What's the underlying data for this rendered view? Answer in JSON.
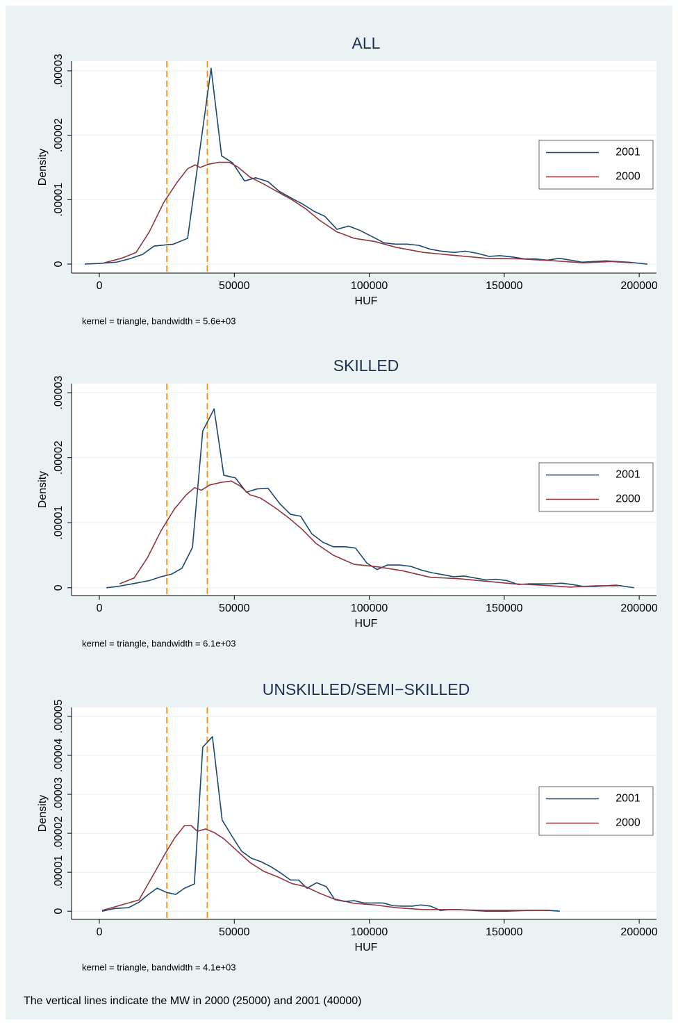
{
  "caption": "The vertical lines indicate the MW in 2000 (25000) and 2001 (40000)",
  "chart_data": [
    {
      "type": "line",
      "title": "ALL",
      "xlabel": "HUF",
      "ylabel": "Density",
      "note": "kernel = triangle, bandwidth =  5.6e+03",
      "xlim": [
        -10300,
        206400
      ],
      "ylim": [
        -1.4e-06,
        3.15e-05
      ],
      "xticks": [
        0,
        50000,
        100000,
        150000,
        200000
      ],
      "yticks": [
        0,
        {
          "value": 1e-05,
          "label": ".00001"
        },
        {
          "value": 2e-05,
          "label": ".00002"
        },
        {
          "value": 3e-05,
          "label": ".00003"
        }
      ],
      "grid": true,
      "legend": "right",
      "vlines": {
        "values": [
          25000,
          40000
        ],
        "color": "#f4901e"
      },
      "series": [
        {
          "name": "2001",
          "color": "#1a476f",
          "x": [
            -5400,
            0,
            6400,
            11000,
            16000,
            20300,
            27500,
            32700,
            41400,
            45300,
            49400,
            53800,
            57900,
            62500,
            66600,
            71300,
            75400,
            79500,
            83600,
            88000,
            92400,
            96700,
            100900,
            105500,
            109600,
            114000,
            118400,
            122700,
            126800,
            131500,
            135600,
            139700,
            144300,
            148500,
            153100,
            157500,
            161600,
            166000,
            170300,
            174700,
            178800,
            183200,
            187600,
            191700,
            196100,
            203000
          ],
          "values": [
            0,
            1e-07,
            3e-07,
            8e-07,
            1.5e-06,
            2.8e-06,
            3.1e-06,
            4e-06,
            3.04e-05,
            1.68e-05,
            1.57e-05,
            1.29e-05,
            1.34e-05,
            1.28e-05,
            1.13e-05,
            1.02e-05,
            9.3e-06,
            8.2e-06,
            7.4e-06,
            5.4e-06,
            5.9e-06,
            5.2e-06,
            4.3e-06,
            3.3e-06,
            3.1e-06,
            3.1e-06,
            2.9e-06,
            2.3e-06,
            2e-06,
            1.8e-06,
            2e-06,
            1.7e-06,
            1.2e-06,
            1.3e-06,
            1.1e-06,
            8e-07,
            8e-07,
            6e-07,
            9e-07,
            6e-07,
            3e-07,
            4e-07,
            5e-07,
            4e-07,
            3e-07,
            0
          ]
        },
        {
          "name": "2000",
          "color": "#90353b",
          "x": [
            1800,
            8200,
            13600,
            18500,
            23900,
            28800,
            32700,
            35500,
            37300,
            40400,
            44300,
            48100,
            51200,
            55800,
            61000,
            66100,
            71300,
            76400,
            81600,
            88000,
            94400,
            102100,
            109900,
            120200,
            130400,
            143300,
            156200,
            169000,
            179300,
            189600,
            197300
          ],
          "values": [
            2e-07,
            9e-07,
            1.8e-06,
            5e-06,
            9.6e-06,
            1.27e-05,
            1.48e-05,
            1.54e-05,
            1.5e-05,
            1.55e-05,
            1.58e-05,
            1.58e-05,
            1.51e-05,
            1.35e-05,
            1.24e-05,
            1.12e-05,
            1e-05,
            8.6e-06,
            6.8e-06,
            5e-06,
            4e-06,
            3.5e-06,
            2.6e-06,
            1.8e-06,
            1.4e-06,
            9e-07,
            8e-07,
            5e-07,
            2e-07,
            4e-07,
            2e-07
          ]
        }
      ]
    },
    {
      "type": "line",
      "title": "SKILLED",
      "xlabel": "HUF",
      "ylabel": "Density",
      "note": "kernel = triangle, bandwidth =  6.1e+03",
      "xlim": [
        -10300,
        206400
      ],
      "ylim": [
        -1.2e-06,
        3.14e-05
      ],
      "xticks": [
        0,
        50000,
        100000,
        150000,
        200000
      ],
      "yticks": [
        0,
        {
          "value": 1e-05,
          "label": ".00001"
        },
        {
          "value": 2e-05,
          "label": ".00002"
        },
        {
          "value": 3e-05,
          "label": ".00003"
        }
      ],
      "grid": true,
      "legend": "right",
      "vlines": {
        "values": [
          25000,
          40000
        ],
        "color": "#f4901e"
      },
      "series": [
        {
          "name": "2001",
          "color": "#1a476f",
          "x": [
            2600,
            6900,
            12100,
            18500,
            22900,
            26800,
            30600,
            34500,
            38300,
            42500,
            46100,
            50400,
            54500,
            58400,
            62500,
            66900,
            70800,
            74600,
            78700,
            82800,
            86700,
            91100,
            94900,
            99100,
            102900,
            106800,
            111200,
            115300,
            119400,
            123300,
            127400,
            131200,
            135100,
            139200,
            143300,
            147200,
            151000,
            155200,
            159300,
            163100,
            167300,
            171100,
            175200,
            179300,
            183500,
            187600,
            191400,
            198100
          ],
          "values": [
            0,
            2e-07,
            6e-07,
            1.1e-06,
            1.7e-06,
            2.1e-06,
            3e-06,
            6.2e-06,
            2.41e-05,
            2.75e-05,
            1.73e-05,
            1.69e-05,
            1.47e-05,
            1.52e-05,
            1.53e-05,
            1.29e-05,
            1.13e-05,
            1.1e-05,
            8.3e-06,
            7e-06,
            6.3e-06,
            6.3e-06,
            6.1e-06,
            3.8e-06,
            2.8e-06,
            3.5e-06,
            3.5e-06,
            3.3e-06,
            2.7e-06,
            2.3e-06,
            2e-06,
            1.7e-06,
            1.8e-06,
            1.5e-06,
            1.2e-06,
            1.3e-06,
            1.1e-06,
            5e-07,
            6e-07,
            6e-07,
            6e-07,
            7e-07,
            5e-07,
            2e-07,
            2e-07,
            3e-07,
            4e-07,
            0
          ]
        },
        {
          "name": "2000",
          "color": "#90353b",
          "x": [
            7500,
            12900,
            17800,
            22900,
            27800,
            32200,
            35300,
            37800,
            40900,
            45000,
            48900,
            52000,
            55800,
            59700,
            64800,
            70000,
            75100,
            80300,
            86700,
            94400,
            103400,
            112400,
            122700,
            133000,
            143300,
            153600,
            163900,
            174200,
            184500,
            192200
          ],
          "values": [
            6e-07,
            1.5e-06,
            4.6e-06,
            8.8e-06,
            1.21e-05,
            1.43e-05,
            1.54e-05,
            1.5e-05,
            1.58e-05,
            1.62e-05,
            1.64e-05,
            1.57e-05,
            1.43e-05,
            1.38e-05,
            1.24e-05,
            1.08e-05,
            9e-06,
            6.8e-06,
            5e-06,
            3.6e-06,
            3.2e-06,
            2.6e-06,
            1.6e-06,
            1.4e-06,
            1e-06,
            6e-07,
            4e-07,
            1e-07,
            3e-07,
            3e-07
          ]
        }
      ]
    },
    {
      "type": "line",
      "title": "UNSKILLED/SEMI−SKILLED",
      "xlabel": "HUF",
      "ylabel": "Density",
      "note": "kernel = triangle, bandwidth =  4.1e+03",
      "xlim": [
        -10300,
        206400
      ],
      "ylim": [
        -2.1e-06,
        5.23e-05
      ],
      "xticks": [
        0,
        50000,
        100000,
        150000,
        200000
      ],
      "yticks": [
        0,
        {
          "value": 1e-05,
          "label": ".00001"
        },
        {
          "value": 2e-05,
          "label": ".00002"
        },
        {
          "value": 3e-05,
          "label": ".00003"
        },
        {
          "value": 4e-05,
          "label": ".00004"
        },
        {
          "value": 5e-05,
          "label": ".00005"
        }
      ],
      "grid": true,
      "legend": "right",
      "vlines": {
        "values": [
          25000,
          40000
        ],
        "color": "#f4901e"
      },
      "series": [
        {
          "name": "2001",
          "color": "#1a476f",
          "x": [
            1000,
            5700,
            10800,
            14700,
            17800,
            21400,
            25000,
            28300,
            31600,
            35200,
            38300,
            41900,
            45500,
            49100,
            52700,
            56300,
            59900,
            63600,
            67200,
            70800,
            73800,
            76900,
            80500,
            84100,
            87200,
            90800,
            94400,
            98000,
            101600,
            105200,
            108800,
            112400,
            116000,
            119100,
            122700,
            126300,
            129900,
            133500,
            138200,
            143300,
            151000,
            158700,
            166400,
            170600
          ],
          "values": [
            0,
            7e-07,
            9e-07,
            2.3e-06,
            4.1e-06,
            5.9e-06,
            4.8e-06,
            4.3e-06,
            5.9e-06,
            7e-06,
            4.21e-05,
            4.48e-05,
            2.34e-05,
            1.93e-05,
            1.54e-05,
            1.36e-05,
            1.27e-05,
            1.14e-05,
            9.8e-06,
            8e-06,
            8e-06,
            5.9e-06,
            7.3e-06,
            6.3e-06,
            3e-06,
            2.5e-06,
            2.7e-06,
            2.1e-06,
            2.1e-06,
            2.1e-06,
            1.4e-06,
            1.3e-06,
            1.3e-06,
            1.6e-06,
            1.3e-06,
            2e-07,
            4e-07,
            4e-07,
            2e-07,
            0,
            0,
            2e-07,
            2e-07,
            0
          ]
        },
        {
          "name": "2000",
          "color": "#90353b",
          "x": [
            1000,
            8200,
            14700,
            19800,
            24400,
            28000,
            31600,
            34000,
            36300,
            39400,
            42500,
            46100,
            50700,
            55800,
            61000,
            66100,
            71300,
            76400,
            81600,
            86700,
            94400,
            102100,
            109900,
            120200,
            130400,
            143300,
            156200,
            166600
          ],
          "values": [
            2e-07,
            1.6e-06,
            2.9e-06,
            9.1e-06,
            1.48e-05,
            1.89e-05,
            2.2e-05,
            2.2e-05,
            2.05e-05,
            2.11e-05,
            2.02e-05,
            1.86e-05,
            1.57e-05,
            1.25e-05,
            1.02e-05,
            8.8e-06,
            7.1e-06,
            6.3e-06,
            4.6e-06,
            3.2e-06,
            2e-06,
            1.6e-06,
            9e-07,
            4e-07,
            4e-07,
            2e-07,
            2e-07,
            2e-07
          ]
        }
      ]
    }
  ]
}
